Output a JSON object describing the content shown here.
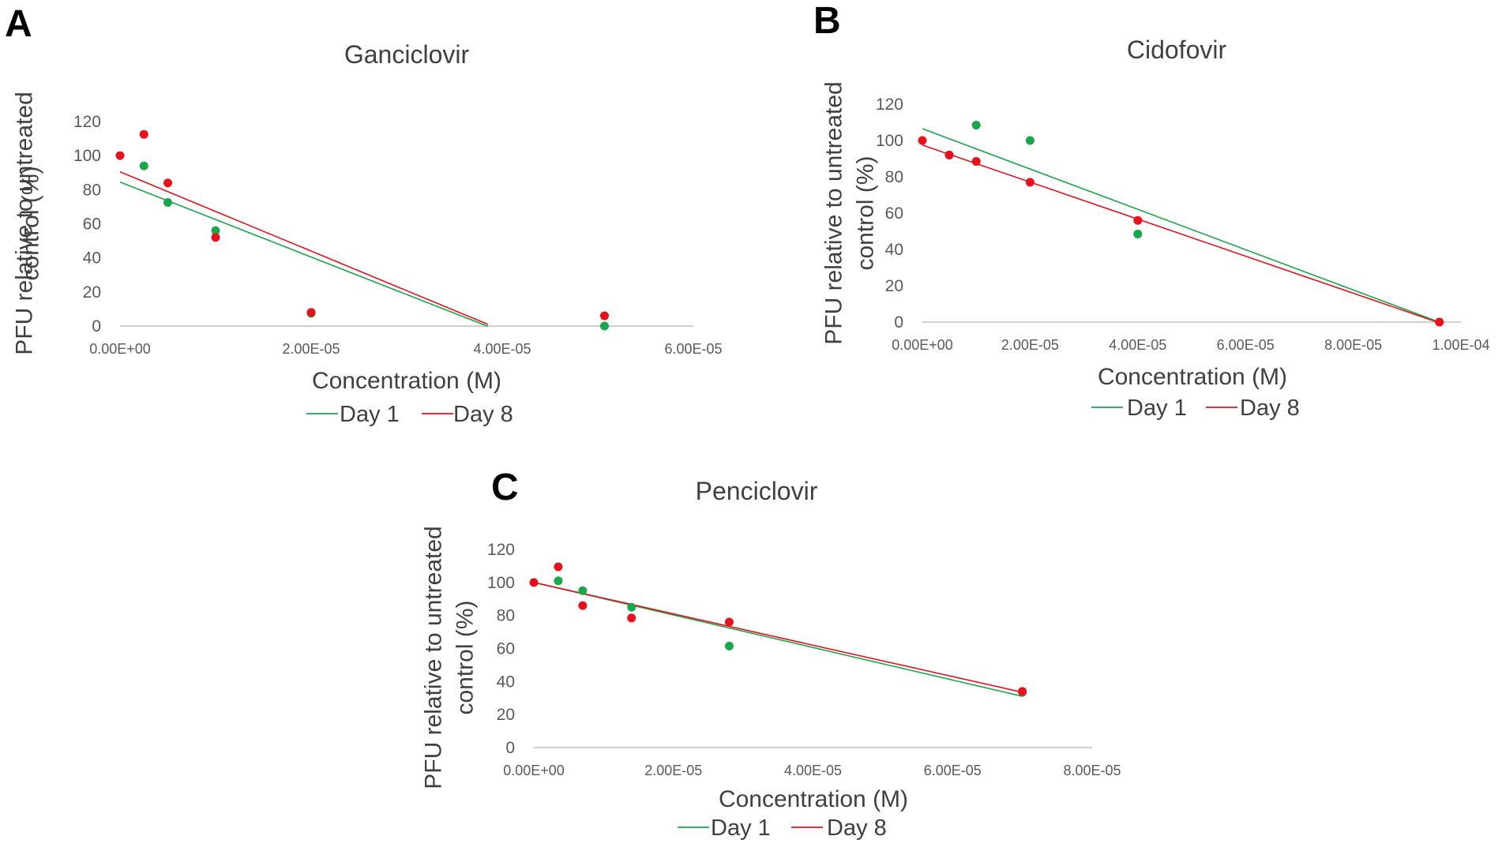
{
  "colors": {
    "day1": "#1aa64a",
    "day8": "#e8111b",
    "axis": "#bfbfbf",
    "text": "#404040"
  },
  "chart_data": [
    {
      "panel": "A",
      "type": "scatter",
      "title": "Ganciclovir",
      "xlabel": "Concentration (M)",
      "ylabel_lines": [
        "PFU relative to untreated",
        "control (%)"
      ],
      "xlim": [
        0,
        6e-05
      ],
      "ylim": [
        0,
        120
      ],
      "xticks": [
        0,
        2e-05,
        4e-05,
        6e-05
      ],
      "xtick_labels": [
        "0.00E+00",
        "2.00E-05",
        "4.00E-05",
        "6.00E-05"
      ],
      "yticks": [
        0,
        20,
        40,
        60,
        80,
        100,
        120
      ],
      "ytick_labels": [
        "0",
        "20",
        "40",
        "60",
        "80",
        "100",
        "120"
      ],
      "trendline_range": [
        0,
        3.85e-05
      ],
      "series": [
        {
          "name": "Day 1",
          "color_key": "day1",
          "points": [
            [
              2.5e-06,
              94
            ],
            [
              5e-06,
              72.5
            ],
            [
              1e-05,
              56
            ],
            [
              2e-05,
              7.5
            ],
            [
              5.07e-05,
              0
            ]
          ],
          "trend": {
            "slope": -2200000,
            "intercept": 84.5
          }
        },
        {
          "name": "Day 8",
          "color_key": "day8",
          "points": [
            [
              0,
              100
            ],
            [
              2.5e-06,
              112.5
            ],
            [
              5e-06,
              84
            ],
            [
              1e-05,
              52
            ],
            [
              2e-05,
              8
            ],
            [
              5.07e-05,
              6
            ]
          ],
          "trend": {
            "slope": -2325000,
            "intercept": 90.5
          }
        }
      ],
      "legend": [
        "Day 1",
        "Day 8"
      ]
    },
    {
      "panel": "B",
      "type": "scatter",
      "title": "Cidofovir",
      "xlabel": "Concentration (M)",
      "ylabel_lines": [
        "PFU relative to untreated",
        "control (%)"
      ],
      "xlim": [
        0,
        0.0001
      ],
      "ylim": [
        0,
        120
      ],
      "xticks": [
        0,
        2e-05,
        4e-05,
        6e-05,
        8e-05,
        0.0001
      ],
      "xtick_labels": [
        "0.00E+00",
        "2.00E-05",
        "4.00E-05",
        "6.00E-05",
        "8.00E-05",
        "1.00E-04"
      ],
      "yticks": [
        0,
        20,
        40,
        60,
        80,
        100,
        120
      ],
      "ytick_labels": [
        "0",
        "20",
        "40",
        "60",
        "80",
        "100",
        "120"
      ],
      "trendline_range": [
        0,
        9.6e-05
      ],
      "series": [
        {
          "name": "Day 1",
          "color_key": "day1",
          "points": [
            [
              5e-06,
              92
            ],
            [
              1e-05,
              108.5
            ],
            [
              2e-05,
              100
            ],
            [
              4e-05,
              48.5
            ],
            [
              9.6e-05,
              0
            ]
          ],
          "trend": {
            "slope": -1110000,
            "intercept": 106.5
          }
        },
        {
          "name": "Day 8",
          "color_key": "day8",
          "points": [
            [
              0,
              100
            ],
            [
              5e-06,
              92
            ],
            [
              1e-05,
              88.5
            ],
            [
              2e-05,
              77
            ],
            [
              4e-05,
              56
            ],
            [
              9.6e-05,
              0
            ]
          ],
          "trend": {
            "slope": -1020000,
            "intercept": 97.5
          }
        }
      ],
      "legend": [
        "Day 1",
        "Day 8"
      ]
    },
    {
      "panel": "C",
      "type": "scatter",
      "title": "Penciclovir",
      "xlabel": "Concentration (M)",
      "ylabel_lines": [
        "PFU relative to untreated",
        "control (%)"
      ],
      "xlim": [
        0,
        8e-05
      ],
      "ylim": [
        0,
        120
      ],
      "xticks": [
        0,
        2e-05,
        4e-05,
        6e-05,
        8e-05
      ],
      "xtick_labels": [
        "0.00E+00",
        "2.00E-05",
        "4.00E-05",
        "6.00E-05",
        "8.00E-05"
      ],
      "yticks": [
        0,
        20,
        40,
        60,
        80,
        100,
        120
      ],
      "ytick_labels": [
        "0",
        "20",
        "40",
        "60",
        "80",
        "100",
        "120"
      ],
      "trendline_range": [
        0,
        7e-05
      ],
      "series": [
        {
          "name": "Day 1",
          "color_key": "day1",
          "points": [
            [
              3.5e-06,
              101
            ],
            [
              7e-06,
              95
            ],
            [
              1.4e-05,
              85
            ],
            [
              2.8e-05,
              61.5
            ],
            [
              7e-05,
              33.5
            ]
          ],
          "trend": {
            "slope": -985000,
            "intercept": 100
          }
        },
        {
          "name": "Day 8",
          "color_key": "day8",
          "points": [
            [
              0,
              100
            ],
            [
              3.5e-06,
              109.5
            ],
            [
              7e-06,
              86
            ],
            [
              1.4e-05,
              78.5
            ],
            [
              2.8e-05,
              76
            ],
            [
              7e-05,
              34
            ]
          ],
          "trend": {
            "slope": -950000,
            "intercept": 100
          }
        }
      ],
      "legend": [
        "Day 1",
        "Day 8"
      ]
    }
  ]
}
